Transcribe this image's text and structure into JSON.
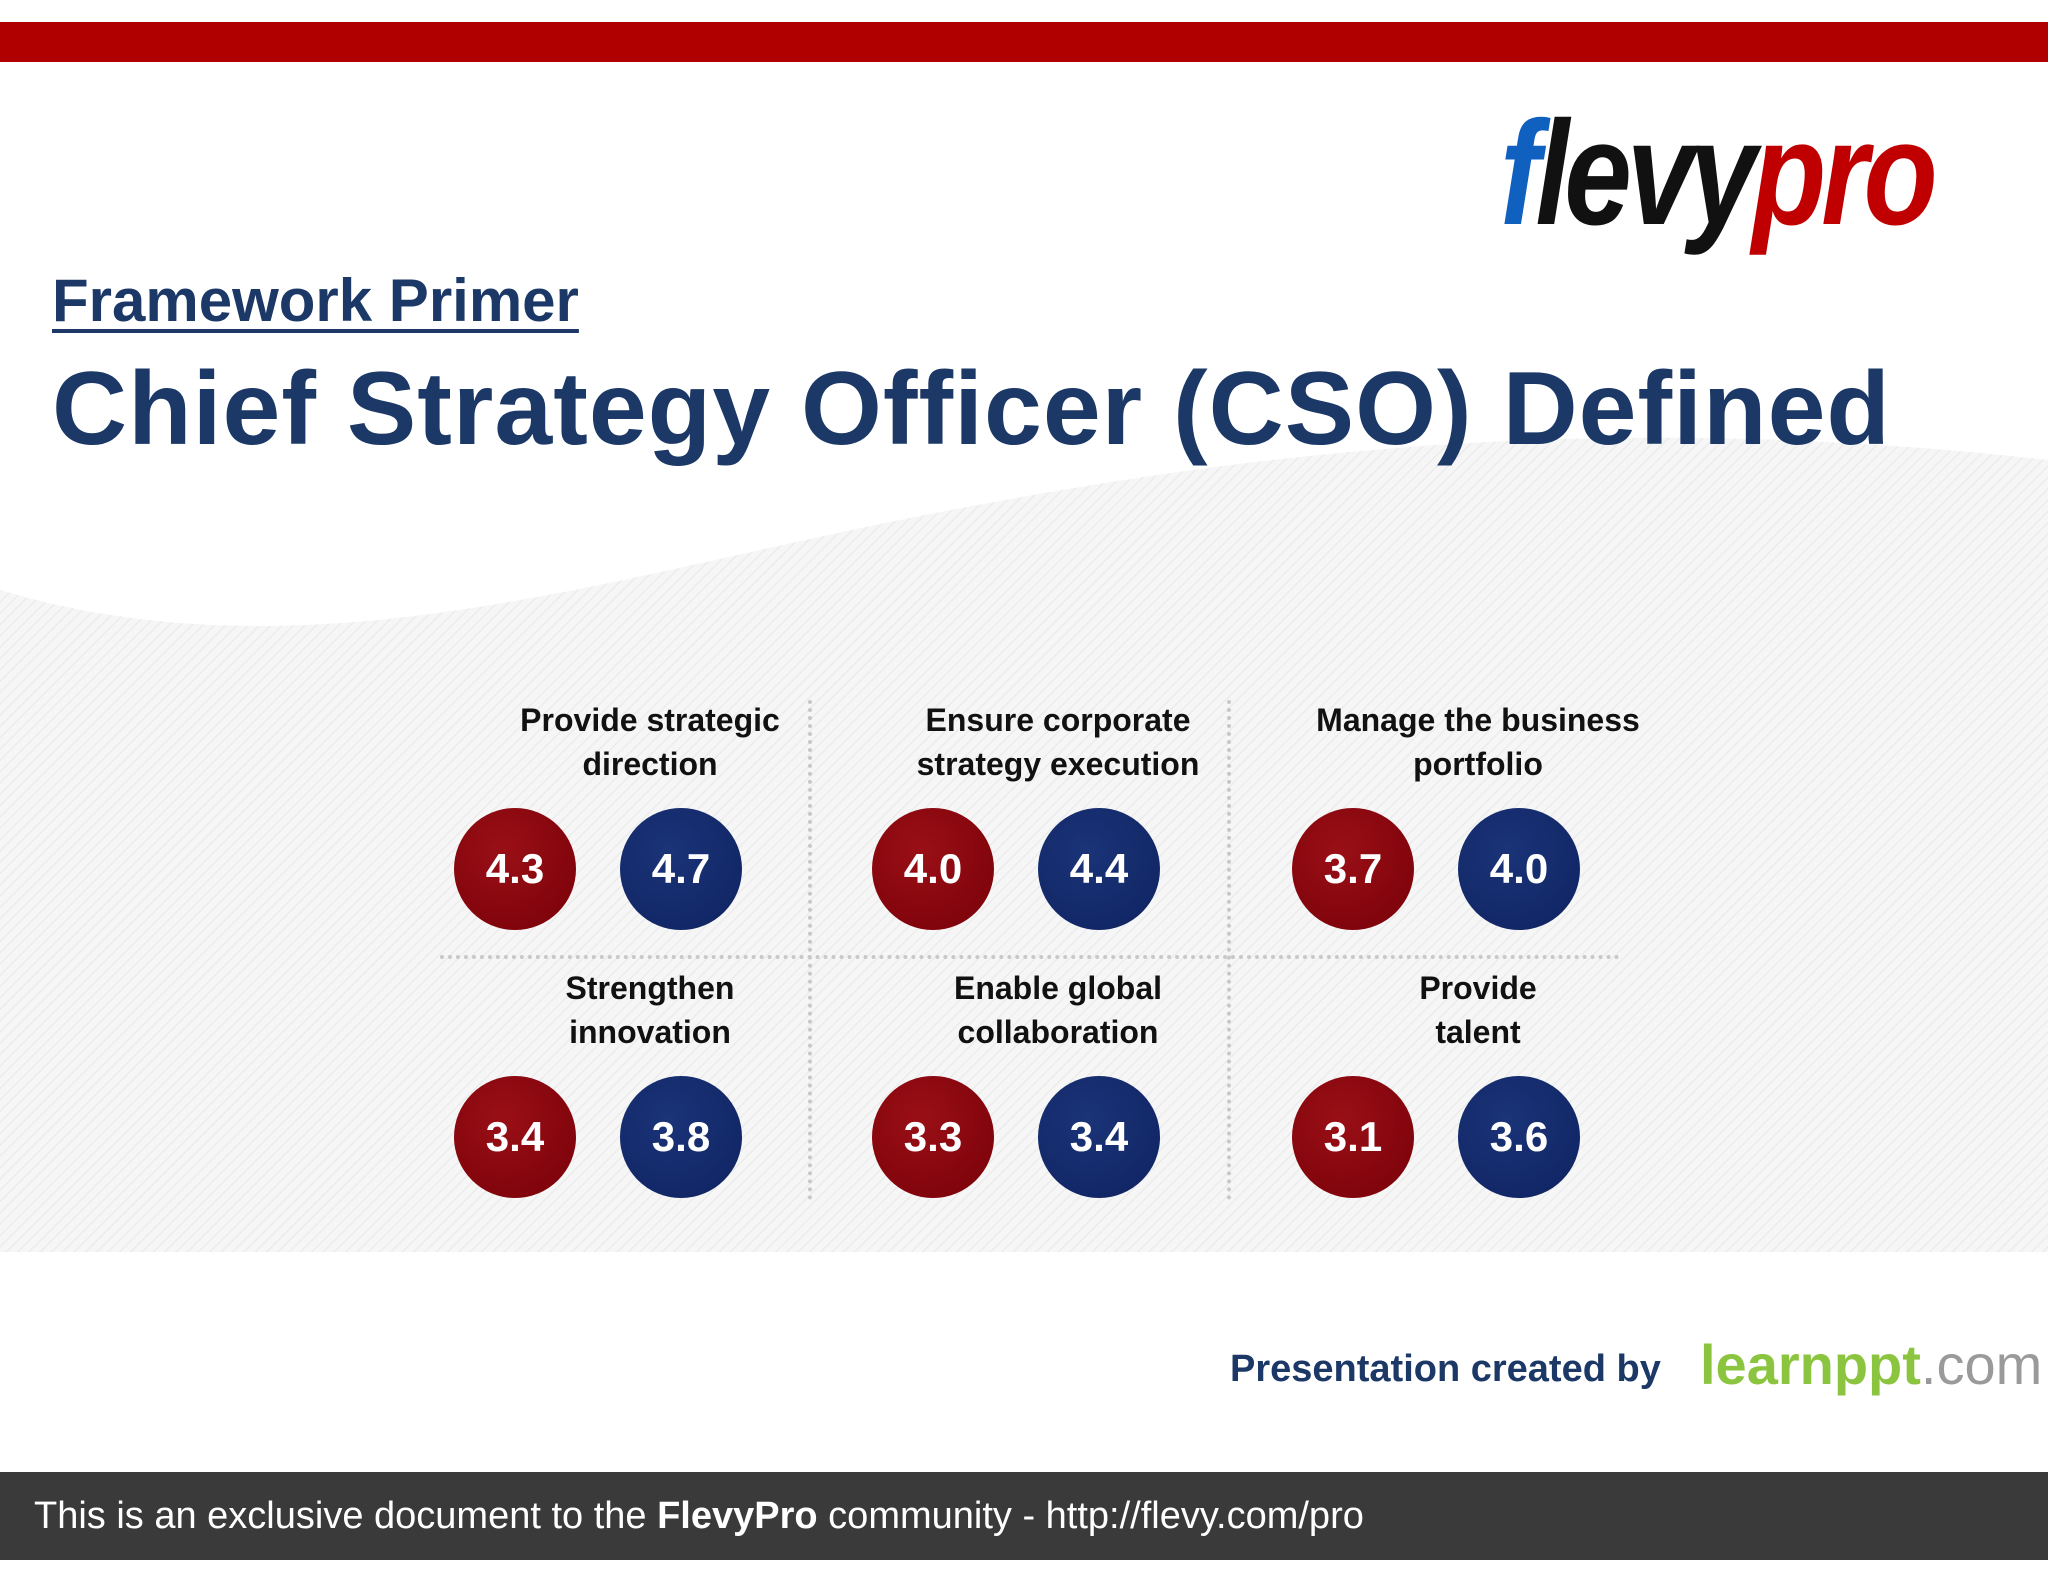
{
  "brand": {
    "logo_f": "f",
    "logo_levy": "levy",
    "logo_pro": "pro"
  },
  "header": {
    "kicker": "Framework Primer",
    "title": "Chief Strategy Officer (CSO) Defined"
  },
  "grid": [
    {
      "label": "Provide strategic\ndirection",
      "values": [
        "4.3",
        "4.7"
      ]
    },
    {
      "label": "Ensure corporate\nstrategy execution",
      "values": [
        "4.0",
        "4.4"
      ]
    },
    {
      "label": "Manage the business\nportfolio",
      "values": [
        "3.7",
        "4.0"
      ]
    },
    {
      "label": "Strengthen\ninnovation",
      "values": [
        "3.4",
        "3.8"
      ]
    },
    {
      "label": "Enable global\ncollaboration",
      "values": [
        "3.3",
        "3.4"
      ]
    },
    {
      "label": "Provide\ntalent",
      "values": [
        "3.1",
        "3.6"
      ]
    }
  ],
  "credit": {
    "text": "Presentation created by",
    "logo_main": "learnppt",
    "logo_suffix": ".com"
  },
  "footer": {
    "lead": "This is an exclusive document to the ",
    "brand": "FlevyPro",
    "tail": " community - http://flevy.com/pro"
  },
  "colors": {
    "red_circle": "#7a0008",
    "blue_circle": "#102562",
    "title": "#1b3866",
    "top_bar": "#b00000"
  }
}
